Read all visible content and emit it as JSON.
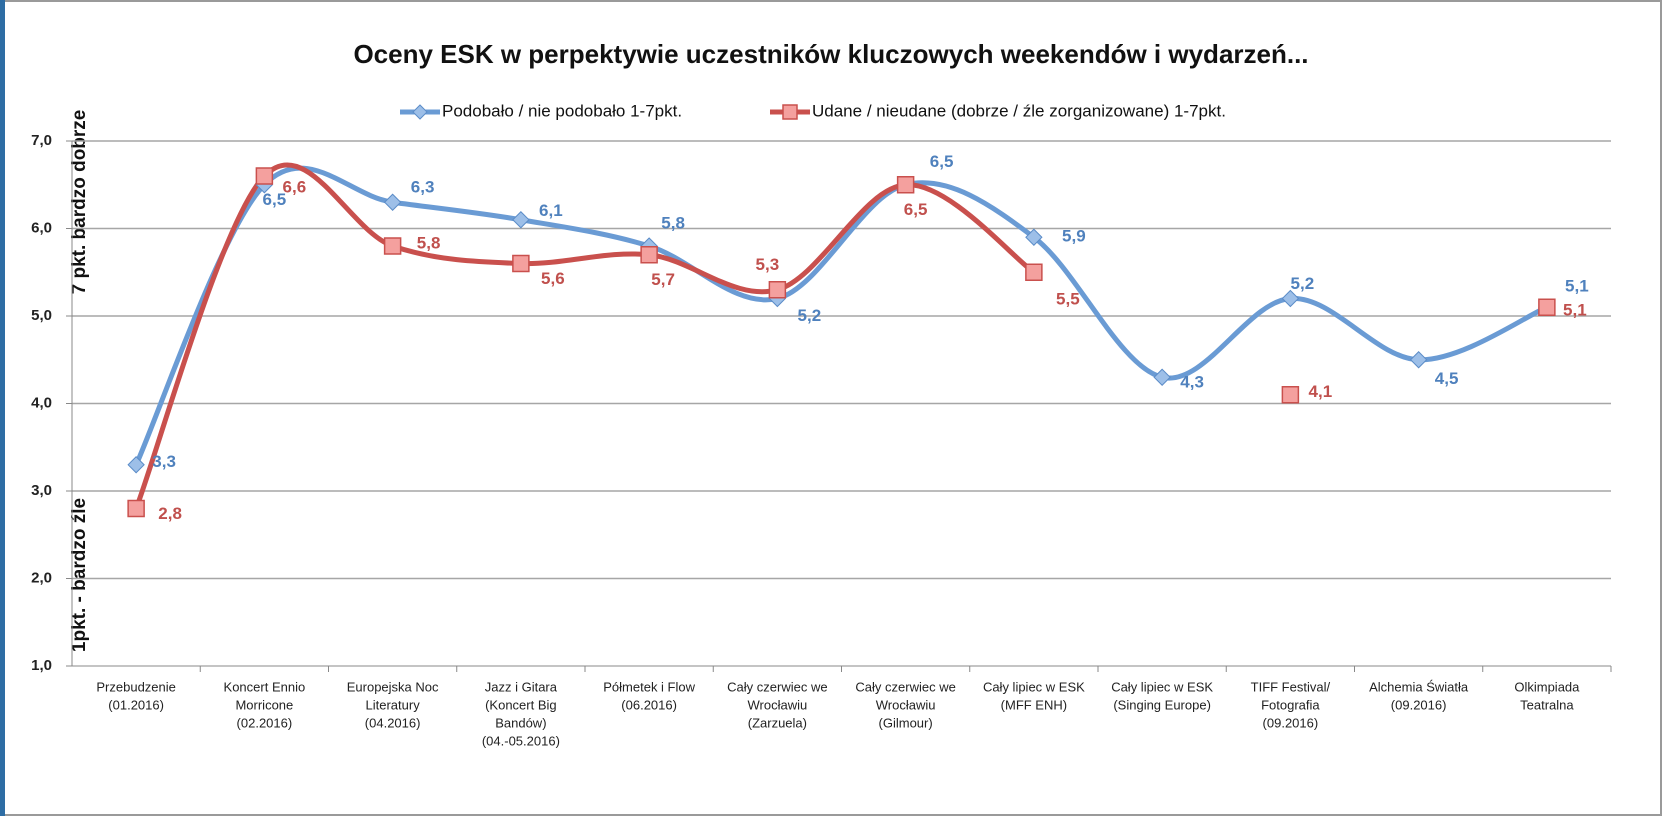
{
  "chart_data": {
    "type": "line",
    "title": "Oceny ESK w perpektywie uczestników kluczowych weekendów i wydarzeń...",
    "ylabel": [
      "1pkt. - bardzo źle",
      "7 pkt. bardzo dobrze"
    ],
    "categories": [
      [
        "Przebudzenie",
        "(01.2016)"
      ],
      [
        "Koncert Ennio",
        "Morricone",
        "(02.2016)"
      ],
      [
        "Europejska Noc",
        "Literatury",
        "(04.2016)"
      ],
      [
        "Jazz i Gitara",
        "(Koncert Big",
        "Bandów)",
        "(04.-05.2016)"
      ],
      [
        "Półmetek i Flow",
        "(06.2016)"
      ],
      [
        "Cały czerwiec we",
        "Wrocławiu",
        "(Zarzuela)"
      ],
      [
        "Cały czerwiec we",
        "Wrocławiu",
        "(Gilmour)"
      ],
      [
        "Cały lipiec w ESK",
        "(MFF ENH)"
      ],
      [
        "Cały lipiec  w ESK",
        "(Singing Europe)"
      ],
      [
        "TIFF Festival/",
        "Fotografia",
        "(09.2016)"
      ],
      [
        "Alchemia Światła",
        "(09.2016)"
      ],
      [
        "Olkimpiada",
        "Teatralna"
      ]
    ],
    "series": [
      {
        "name": "Podobało / nie podobało 1-7pkt.",
        "color": "#6a9bd4",
        "marker": "diamond",
        "values": [
          3.3,
          6.5,
          6.3,
          6.1,
          5.8,
          5.2,
          6.5,
          5.9,
          4.3,
          5.2,
          4.5,
          5.1
        ],
        "value_labels": [
          "3,3",
          "6,5",
          "6,3",
          "6,1",
          "5,8",
          "5,2",
          "6,5",
          "5,9",
          "4,3",
          "5,2",
          "4,5",
          "5,1"
        ]
      },
      {
        "name": "Udane / nieudane (dobrze / źle zorganizowane) 1-7pkt.",
        "color": "#c9504d",
        "marker": "square",
        "values": [
          2.8,
          6.6,
          5.8,
          5.6,
          5.7,
          5.3,
          6.5,
          5.5,
          null,
          4.1,
          null,
          5.1
        ],
        "value_labels": [
          "2,8",
          "6,6",
          "5,8",
          "5,6",
          "5,7",
          "5,3",
          "6,5",
          "5,5",
          null,
          "4,1",
          null,
          "5,1"
        ]
      }
    ],
    "ylim": [
      1,
      7
    ],
    "yticks": [
      {
        "value": 1,
        "label": "1,0"
      },
      {
        "value": 2,
        "label": "2,0"
      },
      {
        "value": 3,
        "label": "3,0"
      },
      {
        "value": 4,
        "label": "4,0"
      },
      {
        "value": 5,
        "label": "5,0"
      },
      {
        "value": 6,
        "label": "6,0"
      },
      {
        "value": 7,
        "label": "7,0"
      }
    ],
    "grid": true,
    "legend": "top"
  }
}
